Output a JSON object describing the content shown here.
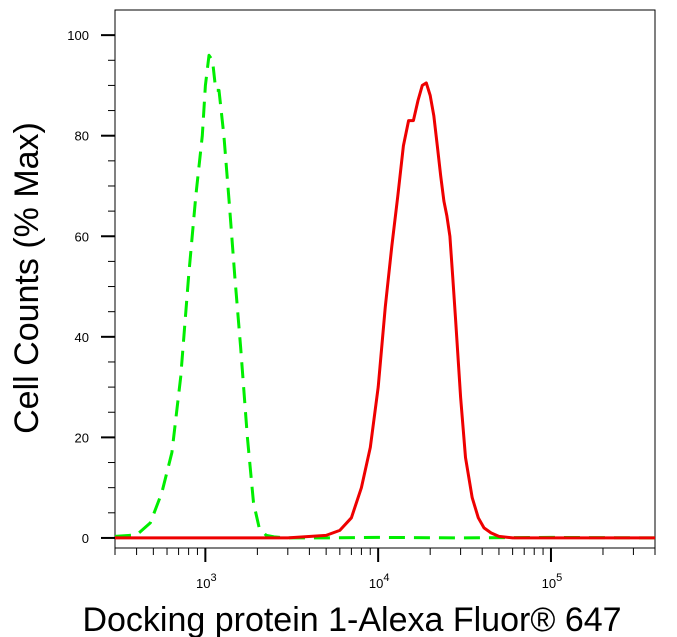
{
  "chart_data": {
    "type": "line",
    "title": "",
    "xlabel": "Docking protein 1-Alexa Fluor® 647",
    "ylabel": "Cell Counts (% Max)",
    "x_scale": "log",
    "xlim": [
      300,
      400000
    ],
    "ylim": [
      -2,
      105
    ],
    "grid": false,
    "legend": "none",
    "x_ticks": [
      {
        "value": 1000,
        "base": "10",
        "exp": "3"
      },
      {
        "value": 10000,
        "base": "10",
        "exp": "4"
      },
      {
        "value": 100000,
        "base": "10",
        "exp": "5"
      }
    ],
    "y_ticks": [
      {
        "value": 0,
        "label": "0"
      },
      {
        "value": 20,
        "label": "20"
      },
      {
        "value": 40,
        "label": "40"
      },
      {
        "value": 60,
        "label": "60"
      },
      {
        "value": 80,
        "label": "80"
      },
      {
        "value": 100,
        "label": "100"
      }
    ],
    "series": [
      {
        "color": "#00ee00",
        "style": "dashed",
        "x": [
          300,
          400,
          480,
          560,
          640,
          720,
          800,
          880,
          960,
          1000,
          1050,
          1100,
          1150,
          1200,
          1280,
          1380,
          1480,
          1600,
          1750,
          1900,
          2050,
          2250,
          2500,
          3000,
          5000,
          10000,
          30000,
          100000,
          400000
        ],
        "y": [
          0.3,
          0.6,
          3,
          9,
          17,
          32,
          52,
          68,
          80,
          90,
          96,
          95,
          89,
          89,
          80,
          66,
          52,
          38,
          20,
          7,
          2,
          0.5,
          0.2,
          0,
          0,
          0.1,
          0,
          0.1,
          0
        ]
      },
      {
        "color": "#ee0000",
        "style": "solid",
        "x": [
          300,
          3000,
          5000,
          6000,
          7000,
          8000,
          9000,
          10000,
          11000,
          12000,
          13000,
          14000,
          15000,
          16000,
          17000,
          18000,
          19000,
          20000,
          21000,
          22000,
          23000,
          24000,
          25000,
          26000,
          27000,
          28000,
          30000,
          32000,
          35000,
          38000,
          41000,
          45000,
          50000,
          60000,
          100000,
          400000
        ],
        "y": [
          0,
          0,
          0.5,
          1.5,
          4,
          10,
          18,
          30,
          46,
          58,
          68,
          78,
          83,
          83,
          87,
          90,
          90.5,
          88,
          84,
          78,
          72,
          67,
          64,
          60,
          52,
          44,
          28,
          16,
          8,
          4,
          2,
          1,
          0.3,
          0,
          0,
          0
        ]
      }
    ]
  }
}
